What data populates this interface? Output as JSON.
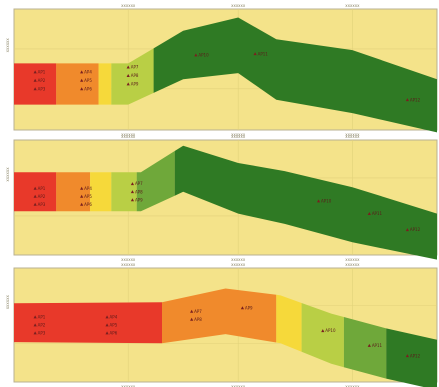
{
  "palette": {
    "background": "#f4e38a",
    "frame": "#b9b091",
    "grid": "#e2d27a",
    "red": "#e8392a",
    "orange": "#f08a2c",
    "yellow": "#f6d93a",
    "yellow_green": "#b9cf45",
    "light_green": "#6fa83a",
    "dark_green": "#2f7a24",
    "station": "#7a1f1f"
  },
  "panels": [
    {
      "id": "panel-1",
      "x_ticks_top": [
        "xxxxxx",
        "xxxxxx",
        "xxxxxx"
      ],
      "x_ticks_bottom": [
        "xxxxxx",
        "xxxxxx",
        "xxxxxx"
      ],
      "y_label": "xxxxxx",
      "stations": [
        {
          "label": "AP1"
        },
        {
          "label": "AP2"
        },
        {
          "label": "AP3"
        },
        {
          "label": "AP4"
        },
        {
          "label": "AP5"
        },
        {
          "label": "AP6"
        },
        {
          "label": "AP7"
        },
        {
          "label": "AP8"
        },
        {
          "label": "AP9"
        },
        {
          "label": "AP10"
        },
        {
          "label": "AP11"
        },
        {
          "label": "AP12"
        }
      ]
    },
    {
      "id": "panel-2",
      "x_ticks_top": [
        "xxxxxx",
        "xxxxxx",
        "xxxxxx"
      ],
      "x_ticks_bottom": [
        "xxxxxx",
        "xxxxxx",
        "xxxxxx"
      ],
      "y_label": "xxxxxx",
      "stations": [
        {
          "label": "AP1"
        },
        {
          "label": "AP2"
        },
        {
          "label": "AP3"
        },
        {
          "label": "AP4"
        },
        {
          "label": "AP5"
        },
        {
          "label": "AP6"
        },
        {
          "label": "AP7"
        },
        {
          "label": "AP8"
        },
        {
          "label": "AP9"
        },
        {
          "label": "AP10"
        },
        {
          "label": "AP11"
        },
        {
          "label": "AP12"
        }
      ]
    },
    {
      "id": "panel-3",
      "x_ticks_top": [
        "xxxxxx",
        "xxxxxx",
        "xxxxxx"
      ],
      "x_ticks_bottom": [
        "xxxxxx",
        "xxxxxx",
        "xxxxxx"
      ],
      "y_label": "xxxxxx",
      "stations": [
        {
          "label": "AP1"
        },
        {
          "label": "AP2"
        },
        {
          "label": "AP3"
        },
        {
          "label": "AP4"
        },
        {
          "label": "AP5"
        },
        {
          "label": "AP6"
        },
        {
          "label": "AP7"
        },
        {
          "label": "AP8"
        },
        {
          "label": "AP9"
        },
        {
          "label": "AP10"
        },
        {
          "label": "AP11"
        },
        {
          "label": "AP12"
        }
      ]
    }
  ]
}
